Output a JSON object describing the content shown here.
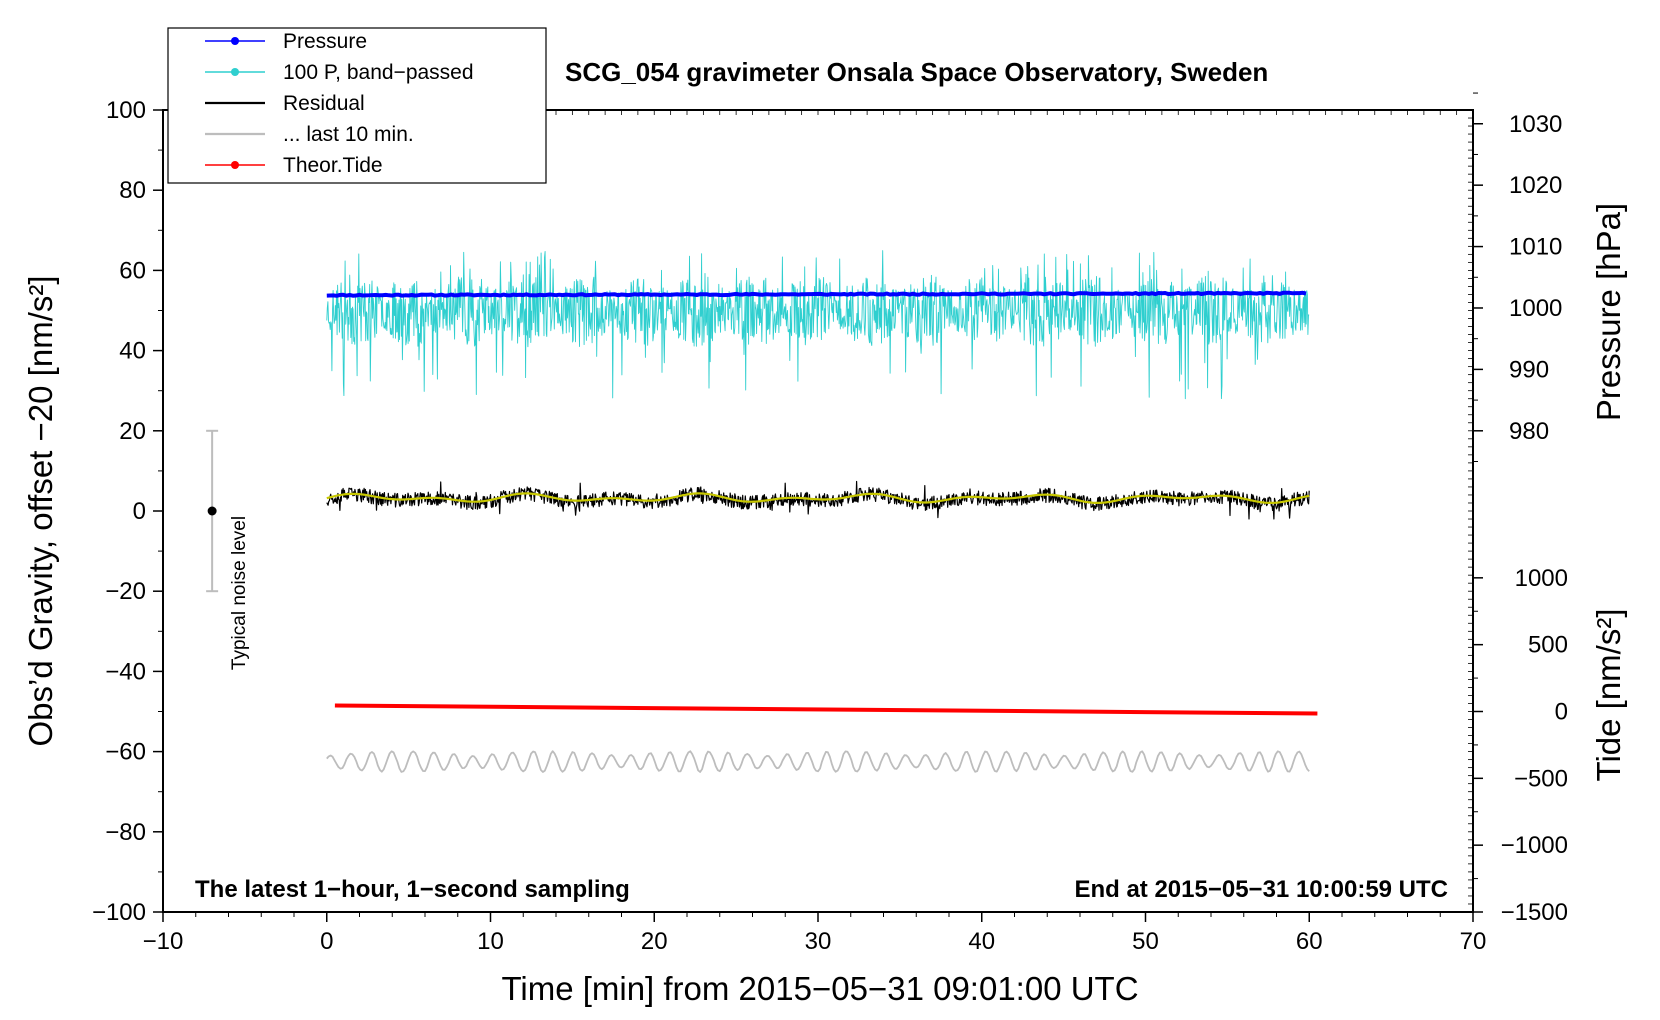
{
  "chart_data": {
    "type": "line",
    "title": "SCG_054 gravimeter Onsala Space Observatory, Sweden",
    "xlabel": "Time [min] from 2015−05−31 09:01:00 UTC",
    "ylabel": "Obs’d Gravity, offset −20 [nm/s²]",
    "xlim": [
      -10,
      70
    ],
    "ylim": [
      -100,
      100
    ],
    "x_ticks": [
      -10,
      0,
      10,
      20,
      30,
      40,
      50,
      60,
      70
    ],
    "x_tick_labels": [
      "−10",
      "0",
      "10",
      "20",
      "30",
      "40",
      "50",
      "60",
      "70"
    ],
    "y_ticks": [
      -100,
      -80,
      -60,
      -40,
      -20,
      0,
      20,
      40,
      60,
      80,
      100
    ],
    "y_tick_labels": [
      "−100",
      "−80",
      "−60",
      "−40",
      "−20",
      "0",
      "20",
      "40",
      "60",
      "80",
      "100"
    ],
    "right_axes": {
      "pressure": {
        "label": "Pressure [hPa]",
        "ticks": [
          980,
          990,
          1000,
          1010,
          1020,
          1030
        ],
        "tick_labels": [
          "980",
          "990",
          "1000",
          "1010",
          "1020",
          "1030"
        ],
        "y_at_980": 20,
        "hpa_per_y_unit": 0.653
      },
      "tide": {
        "label": "Tide [nm/s²]",
        "ticks": [
          -1500,
          -1000,
          -500,
          0,
          500,
          1000
        ],
        "tick_labels": [
          "−1500",
          "−1000",
          "−500",
          "0",
          "500",
          "1000"
        ],
        "y_at_0": -50,
        "tide_per_y_unit": 30
      }
    },
    "legend": {
      "position": "top-left",
      "entries": [
        {
          "label": "Pressure",
          "color": "#0000ff",
          "marker": true
        },
        {
          "label": "100 P, band−passed",
          "color": "#2fcfcf",
          "marker": true
        },
        {
          "label": "Residual",
          "color": "#000000",
          "marker": false
        },
        {
          "label": "... last 10 min.",
          "color": "#bdbdbd",
          "marker": false
        },
        {
          "label": "Theor.Tide",
          "color": "#ff0000",
          "marker": true
        }
      ]
    },
    "series": [
      {
        "name": "Pressure",
        "color": "#0000ff",
        "x_range": [
          0,
          60
        ],
        "start": 53.8,
        "end": 54.3,
        "noise": 0.3,
        "seed": 11
      },
      {
        "name": "100 P, band−passed",
        "color": "#2fcfcf",
        "x_range": [
          0,
          60
        ],
        "center": 50,
        "amplitude": 7,
        "min": 28,
        "max": 65,
        "seed": 23
      },
      {
        "name": "Residual",
        "color": "#000000",
        "x_range": [
          0,
          60
        ],
        "center": 3,
        "amplitude": 1.8,
        "min": -2,
        "max": 9,
        "seed": 37
      },
      {
        "name": "Residual smoothed",
        "color": "#c8c800",
        "x_range": [
          0,
          60
        ],
        "center": 3.2,
        "amplitude": 1.2,
        "seed": 41
      },
      {
        "name": "... last 10 min.",
        "color": "#bdbdbd",
        "x_range": [
          0,
          60
        ],
        "center": -62.5,
        "amplitude": 2.6,
        "min": -67,
        "max": -58,
        "seed": 53
      },
      {
        "name": "Theor.Tide",
        "color": "#ff0000",
        "x_range": [
          0.5,
          60.5
        ],
        "start": -48.5,
        "end": -50.5
      }
    ],
    "noise_bar": {
      "label": "Typical noise level",
      "x": -7,
      "y": 0,
      "low": -20,
      "high": 20,
      "color": "#bdbdbd"
    },
    "annotations": {
      "bottom_left": "The latest 1−hour, 1−second sampling",
      "bottom_right": "End at 2015−05−31 10:00:59 UTC"
    }
  }
}
